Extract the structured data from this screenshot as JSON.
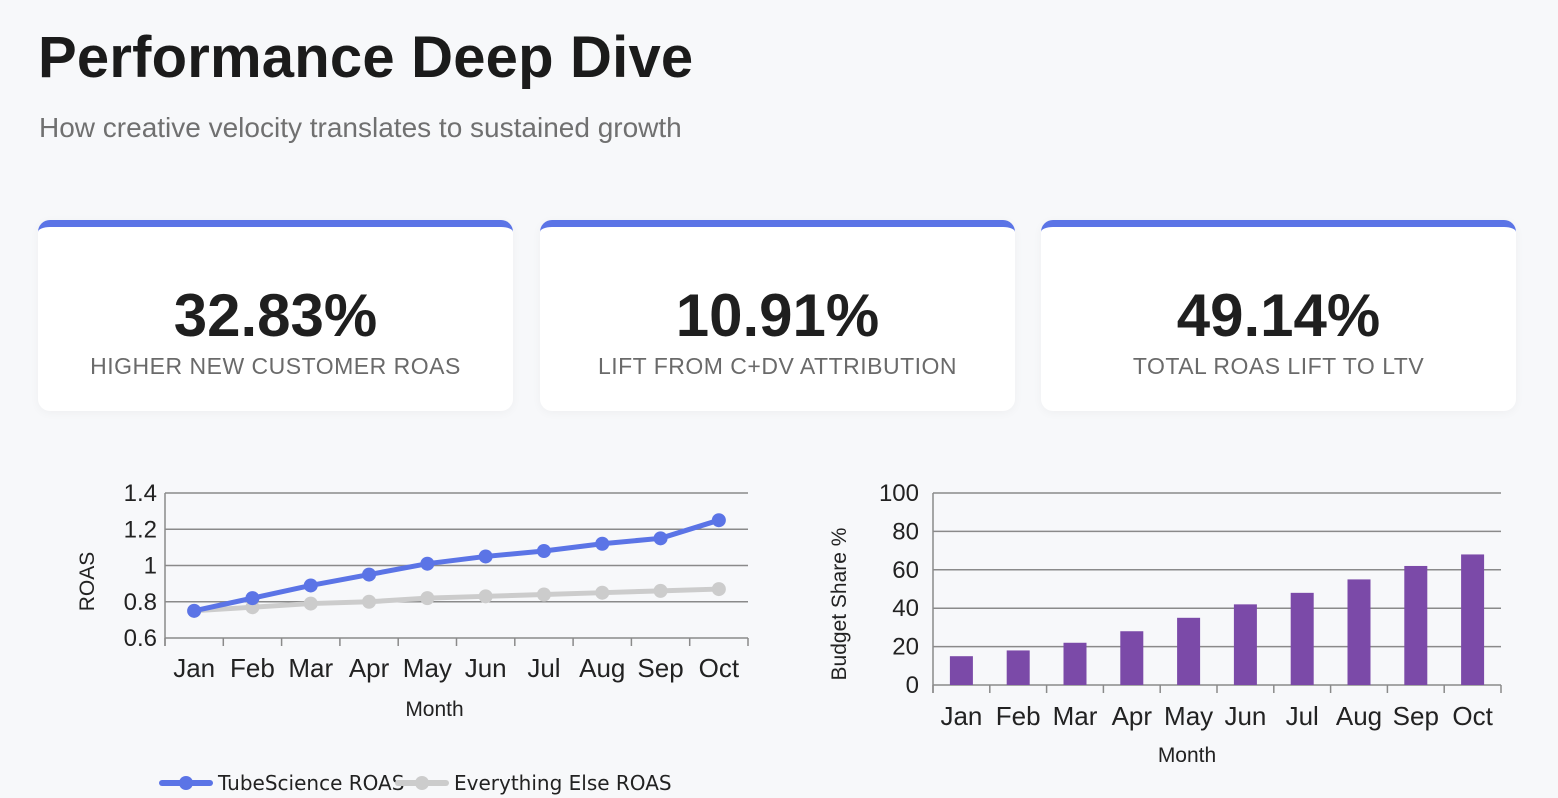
{
  "header": {
    "title": "Performance Deep Dive",
    "subtitle": "How creative velocity translates to sustained growth"
  },
  "kpis": [
    {
      "value": "32.83%",
      "label": "HIGHER NEW CUSTOMER ROAS"
    },
    {
      "value": "10.91%",
      "label": "LIFT FROM C+DV ATTRIBUTION"
    },
    {
      "value": "49.14%",
      "label": "TOTAL ROAS LIFT TO LTV"
    }
  ],
  "colors": {
    "accent": "#5b74e6",
    "series_a": "#5b74e6",
    "series_b": "#cccccc",
    "bar": "#7b4aa8",
    "grid": "#8a8a8a"
  },
  "chart_data": [
    {
      "type": "line",
      "categories": [
        "Jan",
        "Feb",
        "Mar",
        "Apr",
        "May",
        "Jun",
        "Jul",
        "Aug",
        "Sep",
        "Oct"
      ],
      "series": [
        {
          "name": "TubeScience ROAS",
          "values": [
            0.75,
            0.82,
            0.89,
            0.95,
            1.01,
            1.05,
            1.08,
            1.12,
            1.15,
            1.25
          ]
        },
        {
          "name": "Everything Else ROAS",
          "values": [
            0.75,
            0.77,
            0.79,
            0.8,
            0.82,
            0.83,
            0.84,
            0.85,
            0.86,
            0.87
          ]
        }
      ],
      "xlabel": "Month",
      "ylabel": "ROAS",
      "ylim": [
        0.6,
        1.4
      ],
      "yticks": [
        "0.6",
        "0.8",
        "1",
        "1.2",
        "1.4"
      ],
      "legend": "bottom",
      "grid": true
    },
    {
      "type": "bar",
      "categories": [
        "Jan",
        "Feb",
        "Mar",
        "Apr",
        "May",
        "Jun",
        "Jul",
        "Aug",
        "Sep",
        "Oct"
      ],
      "values": [
        15,
        18,
        22,
        28,
        35,
        42,
        48,
        55,
        62,
        68
      ],
      "xlabel": "Month",
      "ylabel": "Budget Share %",
      "ylim": [
        0,
        100
      ],
      "yticks": [
        "0",
        "20",
        "40",
        "60",
        "80",
        "100"
      ],
      "grid": true
    }
  ]
}
